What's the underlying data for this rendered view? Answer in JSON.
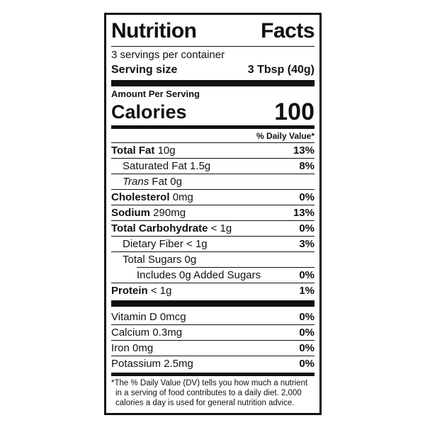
{
  "colors": {
    "ink": "#111111",
    "paper": "#ffffff"
  },
  "label": {
    "title": "Nutrition Facts",
    "servings_per_container": "3 servings per container",
    "serving_size": {
      "label": "Serving size",
      "value": "3 Tbsp (40g)"
    },
    "amount_per_serving": "Amount Per Serving",
    "calories": {
      "label": "Calories",
      "value": "100"
    },
    "daily_value_header": "% Daily Value*",
    "nutrients": [
      {
        "bold": "Total Fat",
        "italic": "",
        "text": "10g",
        "dv": "13%"
      },
      {
        "bold": "",
        "italic": "",
        "text": "Saturated Fat 1.5g",
        "dv": "8%"
      },
      {
        "bold": "",
        "italic": "Trans",
        "text": "Fat 0g",
        "dv": ""
      },
      {
        "bold": "Cholesterol",
        "italic": "",
        "text": "0mg",
        "dv": "0%"
      },
      {
        "bold": "Sodium",
        "italic": "",
        "text": "290mg",
        "dv": "13%"
      },
      {
        "bold": "Total Carbohydrate",
        "italic": "",
        "text": "< 1g",
        "dv": "0%"
      },
      {
        "bold": "",
        "italic": "",
        "text": "Dietary Fiber < 1g",
        "dv": "3%"
      },
      {
        "bold": "",
        "italic": "",
        "text": "Total Sugars 0g",
        "dv": ""
      },
      {
        "bold": "",
        "italic": "",
        "text": "Includes 0g Added Sugars",
        "dv": "0%"
      },
      {
        "bold": "Protein",
        "italic": "",
        "text": "< 1g",
        "dv": "1%"
      }
    ],
    "micronutrients": [
      {
        "text": "Vitamin D 0mcg",
        "dv": "0%"
      },
      {
        "text": "Calcium 0.3mg",
        "dv": "0%"
      },
      {
        "text": "Iron 0mg",
        "dv": "0%"
      },
      {
        "text": "Potassium 2.5mg",
        "dv": "0%"
      }
    ],
    "footnote_marker": "*",
    "footnote": "The % Daily Value (DV) tells you how much a nutrient in a serving of food contributes to a daily diet. 2,000 calories a day is used for general nutrition advice."
  }
}
